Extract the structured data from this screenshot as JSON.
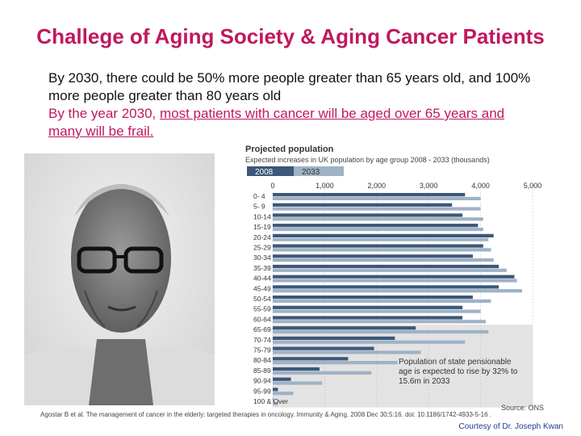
{
  "slide": {
    "title": "Challege of Aging Society & Aging Cancer Patients",
    "bullet1": "By 2030, there could be 50% more people greater than 65 years old, and 100% more people greater than 80 years old",
    "bullet2_prefix": "By the year 2030, ",
    "bullet2_underlined": "most patients with cancer will be aged over 65 years and many will be frail.",
    "citation": "Agostar B et al. The management of cancer in the elderly: targeted therapies in oncology. Immunity & Aging. 2008 Dec 30;5:16. doi: 10.1186/1742-4933-5-16 .",
    "courtesy": "Courtesy of Dr. Joseph Kwan"
  },
  "colors": {
    "accent": "#c0185f",
    "series_2008": "#3d5878",
    "series_2033": "#9fb2c6",
    "pension_shade": "#e3e3e3"
  },
  "chart_data": {
    "type": "bar",
    "orientation": "horizontal",
    "title": "Projected population",
    "subtitle": "Expected increases in UK population by age group 2008 - 2033 (thousands)",
    "categories": [
      "0- 4",
      "5- 9",
      "10-14",
      "15-19",
      "20-24",
      "25-29",
      "30-34",
      "35-39",
      "40-44",
      "45-49",
      "50-54",
      "55-59",
      "60-64",
      "65-69",
      "70-74",
      "75-79",
      "80-84",
      "85-89",
      "90-94",
      "95-99",
      "100 & Over"
    ],
    "series": [
      {
        "name": "2008",
        "values": [
          3700,
          3450,
          3650,
          3950,
          4250,
          4050,
          3850,
          4350,
          4650,
          4350,
          3850,
          3650,
          3650,
          2750,
          2350,
          1950,
          1450,
          900,
          350,
          100,
          10
        ]
      },
      {
        "name": "2033",
        "values": [
          4000,
          4000,
          4050,
          4050,
          4150,
          4200,
          4250,
          4500,
          4700,
          4800,
          4200,
          4000,
          4100,
          4150,
          3700,
          2850,
          2400,
          1900,
          950,
          400,
          100
        ]
      }
    ],
    "xlim": [
      0,
      5000
    ],
    "xticks": [
      "0",
      "1,000",
      "2,000",
      "3,000",
      "4,000",
      "5,000"
    ],
    "shaded_from_category": "65-69",
    "annotation": "Population of state pensionable age is expected to rise by 32% to 15.6m in 2033",
    "source": "Source: ONS"
  }
}
